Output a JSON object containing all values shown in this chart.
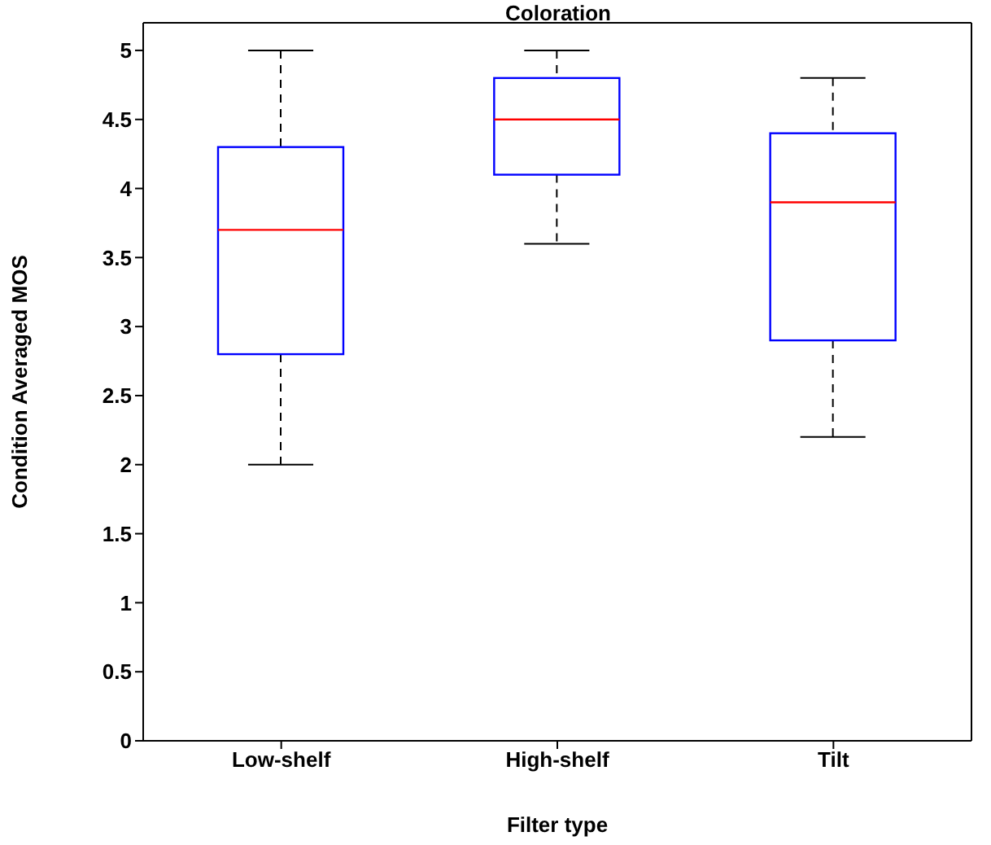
{
  "chart_data": {
    "type": "box",
    "title": "Coloration",
    "xlabel": "Filter type",
    "ylabel": "Condition Averaged MOS",
    "categories": [
      "Low-shelf",
      "High-shelf",
      "Tilt"
    ],
    "boxes": [
      {
        "low": 2,
        "q1": 2.8,
        "median": 3.7,
        "q3": 4.3,
        "high": 5
      },
      {
        "low": 3.6,
        "q1": 4.1,
        "median": 4.5,
        "q3": 4.8,
        "high": 5
      },
      {
        "low": 2.2,
        "q1": 2.9,
        "median": 3.9,
        "q3": 4.4,
        "high": 4.8
      }
    ],
    "color": "#0000ff",
    "ylim": [
      0,
      5.2
    ],
    "yticks": [
      0,
      {
        "value": 0.5,
        "label": "0.5"
      },
      1,
      {
        "value": 1.5,
        "label": "1.5"
      },
      2,
      {
        "value": 2.5,
        "label": "2.5"
      },
      3,
      {
        "value": 3.5,
        "label": "3.5"
      },
      4,
      {
        "value": 4.5,
        "label": "4.5"
      },
      5
    ],
    "grid": false,
    "legend": false
  }
}
